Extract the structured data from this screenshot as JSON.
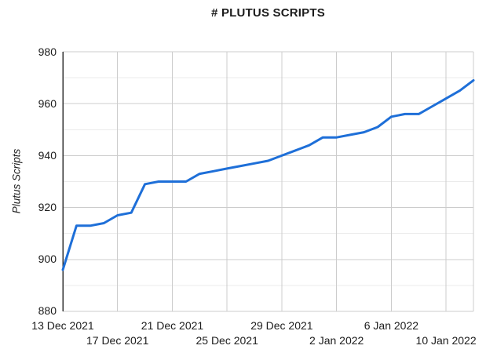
{
  "chart_data": {
    "type": "line",
    "title": "# PLUTUS SCRIPTS",
    "xlabel": "",
    "ylabel": "Plutus Scripts",
    "series_name": "Plutus Scripts",
    "legend": "none",
    "grid": true,
    "ylim": [
      880,
      980
    ],
    "yticks_major": [
      880,
      900,
      920,
      940,
      960,
      980
    ],
    "yticks_minor": [
      890,
      910,
      930,
      950,
      970
    ],
    "ytick_labels": [
      "980",
      "960",
      "940",
      "920",
      "900",
      "880"
    ],
    "x": [
      "13 Dec 2021",
      "14 Dec 2021",
      "15 Dec 2021",
      "16 Dec 2021",
      "17 Dec 2021",
      "18 Dec 2021",
      "19 Dec 2021",
      "20 Dec 2021",
      "21 Dec 2021",
      "22 Dec 2021",
      "23 Dec 2021",
      "24 Dec 2021",
      "25 Dec 2021",
      "26 Dec 2021",
      "27 Dec 2021",
      "28 Dec 2021",
      "29 Dec 2021",
      "30 Dec 2021",
      "31 Dec 2021",
      "1 Jan 2022",
      "2 Jan 2022",
      "3 Jan 2022",
      "4 Jan 2022",
      "5 Jan 2022",
      "6 Jan 2022",
      "7 Jan 2022",
      "8 Jan 2022",
      "9 Jan 2022",
      "10 Jan 2022",
      "11 Jan 2022",
      "12 Jan 2022"
    ],
    "values": [
      896,
      913,
      913,
      914,
      917,
      918,
      929,
      930,
      930,
      930,
      933,
      934,
      935,
      936,
      937,
      938,
      940,
      942,
      944,
      947,
      947,
      948,
      949,
      951,
      955,
      956,
      956,
      959,
      962,
      965,
      969
    ],
    "xticks": [
      {
        "day": 0,
        "label": "13 Dec 2021",
        "row": 1
      },
      {
        "day": 4,
        "label": "17 Dec 2021",
        "row": 2
      },
      {
        "day": 8,
        "label": "21 Dec 2021",
        "row": 1
      },
      {
        "day": 12,
        "label": "25 Dec 2021",
        "row": 2
      },
      {
        "day": 16,
        "label": "29 Dec 2021",
        "row": 1
      },
      {
        "day": 20,
        "label": "2 Jan 2022",
        "row": 2
      },
      {
        "day": 24,
        "label": "6 Jan 2022",
        "row": 1
      },
      {
        "day": 28,
        "label": "10 Jan 2022",
        "row": 2
      }
    ],
    "colors": {
      "line": "#1e6fd8",
      "grid_major": "#cccccc",
      "grid_minor": "#ebebeb",
      "axis": "#333333",
      "text": "#1c1c1c",
      "background": "#ffffff"
    }
  }
}
